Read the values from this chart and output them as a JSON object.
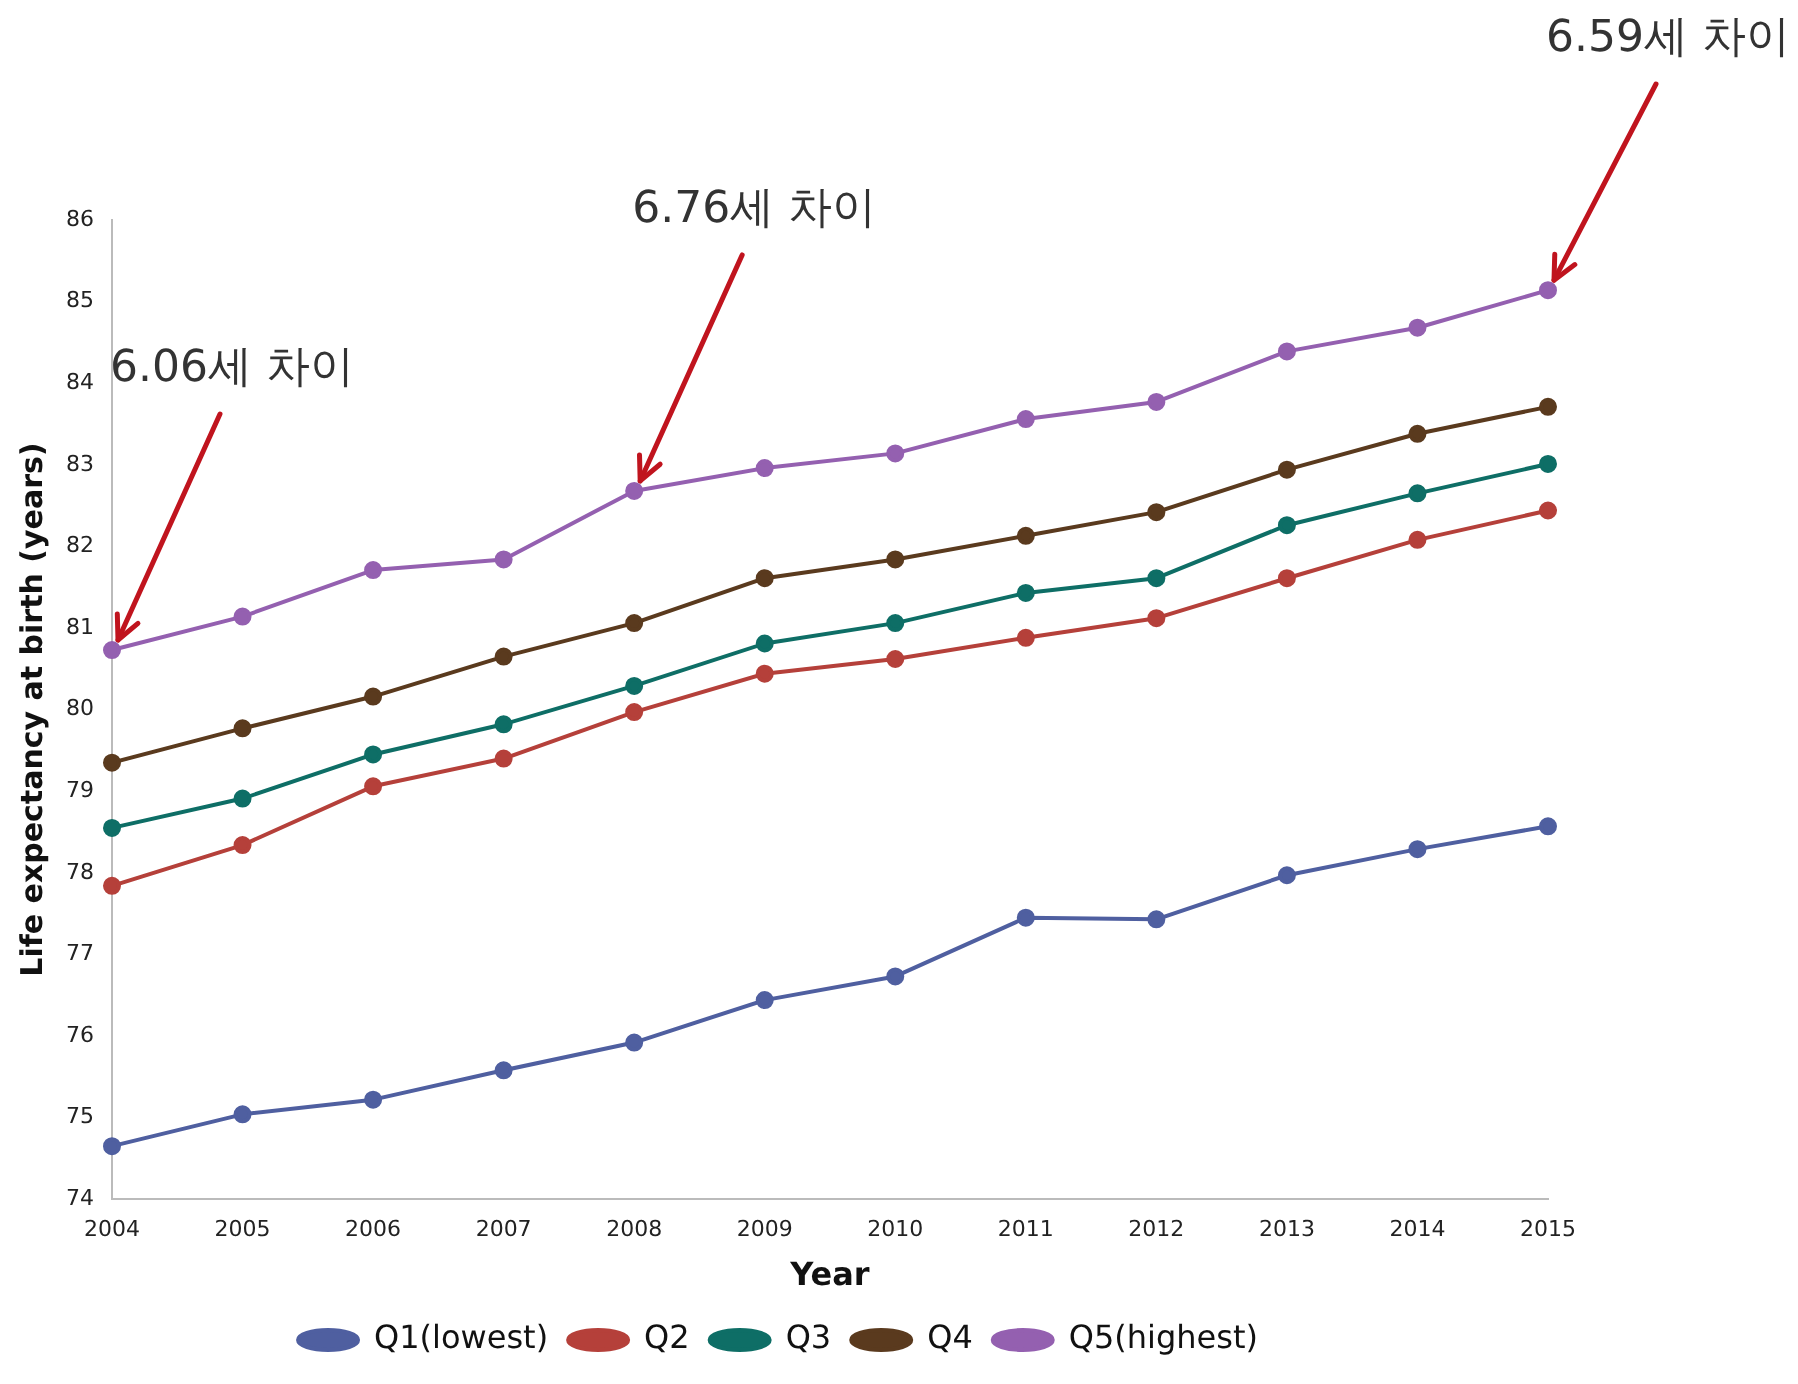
{
  "chart_data": {
    "type": "line",
    "xlabel": "Year",
    "ylabel": "Life expectancy at birth (years)",
    "categories": [
      "2004",
      "2005",
      "2006",
      "2007",
      "2008",
      "2009",
      "2010",
      "2011",
      "2012",
      "2013",
      "2014",
      "2015"
    ],
    "series": [
      {
        "name": "Q1(lowest)",
        "color": "#4f5fa0",
        "values": [
          74.65,
          75.04,
          75.22,
          75.58,
          75.92,
          76.44,
          76.73,
          77.45,
          77.43,
          77.97,
          78.29,
          78.57
        ]
      },
      {
        "name": "Q2",
        "color": "#b5403a",
        "values": [
          77.84,
          78.34,
          79.06,
          79.4,
          79.97,
          80.44,
          80.62,
          80.88,
          81.12,
          81.61,
          82.08,
          82.44
        ]
      },
      {
        "name": "Q3",
        "color": "#0e6e66",
        "values": [
          78.55,
          78.91,
          79.45,
          79.82,
          80.29,
          80.81,
          81.06,
          81.43,
          81.61,
          82.26,
          82.65,
          83.01
        ]
      },
      {
        "name": "Q4",
        "color": "#5a3a1e",
        "values": [
          79.35,
          79.77,
          80.16,
          80.65,
          81.06,
          81.61,
          81.84,
          82.13,
          82.42,
          82.94,
          83.38,
          83.71
        ]
      },
      {
        "name": "Q5(highest)",
        "color": "#9460b0",
        "values": [
          80.73,
          81.14,
          81.71,
          81.84,
          82.68,
          82.96,
          83.14,
          83.56,
          83.77,
          84.39,
          84.68,
          85.14
        ]
      }
    ],
    "ylim": [
      74,
      86
    ],
    "yticks": [
      74,
      75,
      76,
      77,
      78,
      79,
      80,
      81,
      82,
      83,
      84,
      85,
      86
    ],
    "grid": false,
    "legend": "bottom",
    "marker": "circle",
    "line_style": "solid",
    "annotations": [
      {
        "text": "6.06세 차이",
        "x": "2004",
        "y": 80.73
      },
      {
        "text": "6.76세 차이",
        "x": "2008",
        "y": 82.68
      },
      {
        "text": "6.59세 차이",
        "x": "2015",
        "y": 85.14
      }
    ]
  }
}
